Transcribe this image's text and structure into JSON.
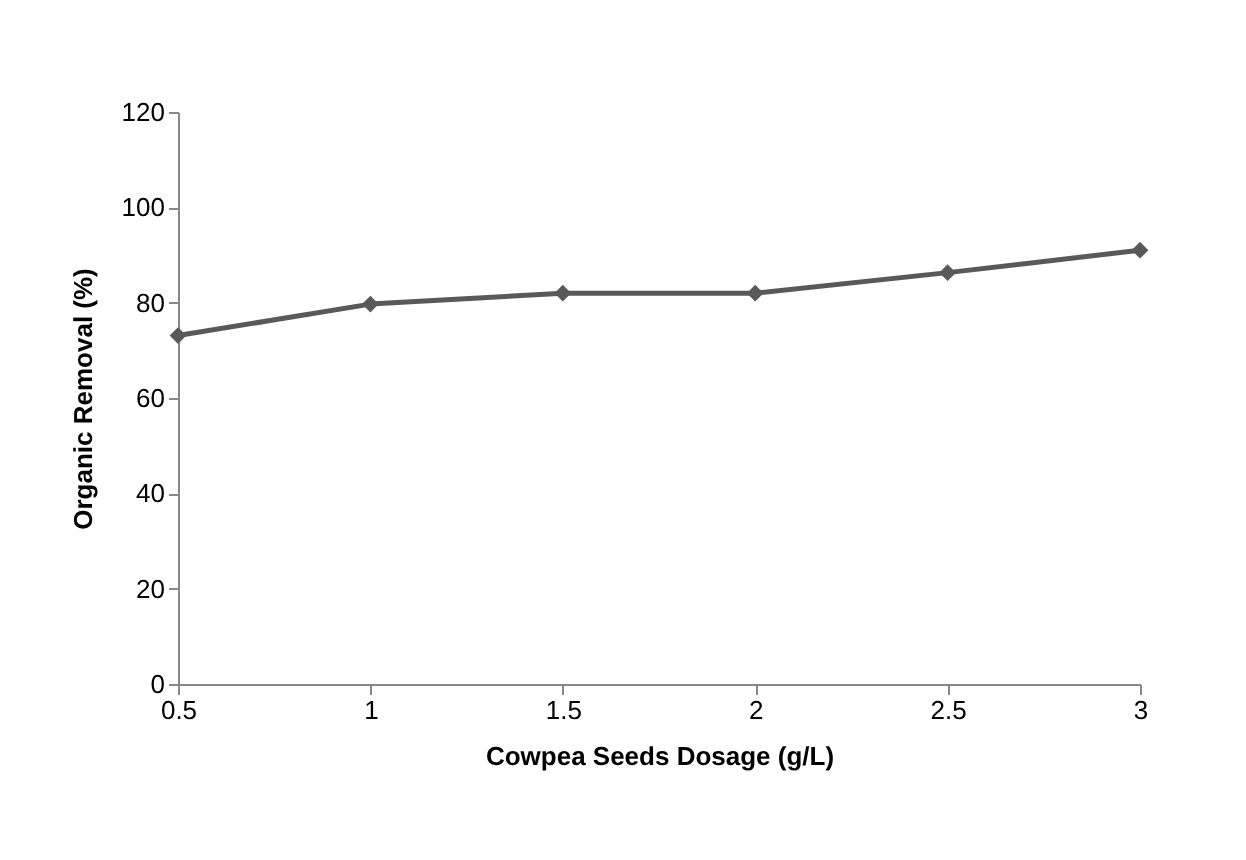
{
  "chart_data": {
    "type": "line",
    "xlabel": "Cowpea Seeds Dosage (g/L)",
    "ylabel": "Organic Removal (%)",
    "x": [
      0.5,
      1,
      1.5,
      2,
      2.5,
      3
    ],
    "series": [
      {
        "color": "#595959",
        "values": [
          73.1,
          79.7,
          82.0,
          82.0,
          86.3,
          91.0
        ]
      }
    ],
    "xlim": [
      0.5,
      3
    ],
    "xticks": [
      0.5,
      1,
      1.5,
      2,
      2.5,
      3
    ],
    "ylim": [
      0,
      120
    ],
    "yticks": [
      0,
      20,
      40,
      60,
      80,
      100,
      120
    ],
    "grid": false,
    "marker": "diamond",
    "line_style": "solid",
    "legend": false
  }
}
